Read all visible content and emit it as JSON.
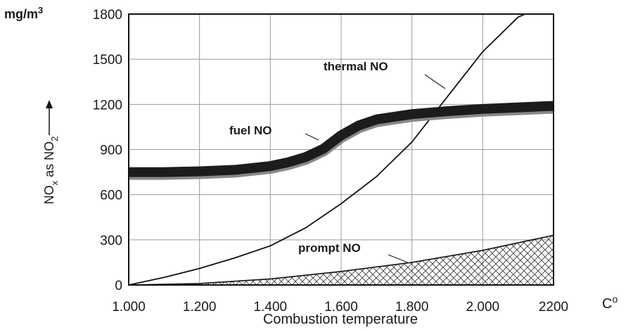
{
  "chart_data": {
    "type": "line",
    "xlabel": "Combustion temperature",
    "x_unit": "C°",
    "ylabel": "NOx as NO2",
    "y_unit": "mg/m3",
    "xlim": [
      1000,
      2200
    ],
    "ylim": [
      0,
      1800
    ],
    "x_tick_labels": [
      "1.000",
      "1.200",
      "1.400",
      "1.600",
      "1.800",
      "2.000",
      "2200"
    ],
    "y_tick_labels": [
      "0",
      "300",
      "600",
      "900",
      "1200",
      "1500",
      "1800"
    ],
    "grid": true,
    "series": [
      {
        "name": "thermal NO",
        "style": "thin-line",
        "x": [
          1000,
          1100,
          1200,
          1300,
          1400,
          1500,
          1600,
          1700,
          1800,
          1900,
          2000,
          2100,
          2120
        ],
        "y": [
          0,
          50,
          110,
          180,
          260,
          380,
          540,
          720,
          950,
          1250,
          1550,
          1780,
          1800
        ]
      },
      {
        "name": "fuel NO",
        "style": "thick-band",
        "x": [
          1000,
          1100,
          1200,
          1300,
          1400,
          1450,
          1500,
          1550,
          1600,
          1650,
          1700,
          1800,
          1900,
          2000,
          2100,
          2200
        ],
        "y": [
          750,
          750,
          755,
          765,
          790,
          815,
          850,
          905,
          995,
          1060,
          1100,
          1135,
          1155,
          1170,
          1180,
          1190
        ]
      },
      {
        "name": "prompt NO",
        "style": "hatched-area",
        "x": [
          1000,
          1200,
          1400,
          1600,
          1800,
          2000,
          2200
        ],
        "y": [
          0,
          10,
          40,
          90,
          150,
          230,
          330
        ]
      }
    ],
    "annotations": [
      {
        "text": "thermal NO",
        "series": "thermal NO"
      },
      {
        "text": "fuel NO",
        "series": "fuel NO"
      },
      {
        "text": "prompt NO",
        "series": "prompt NO"
      }
    ]
  }
}
